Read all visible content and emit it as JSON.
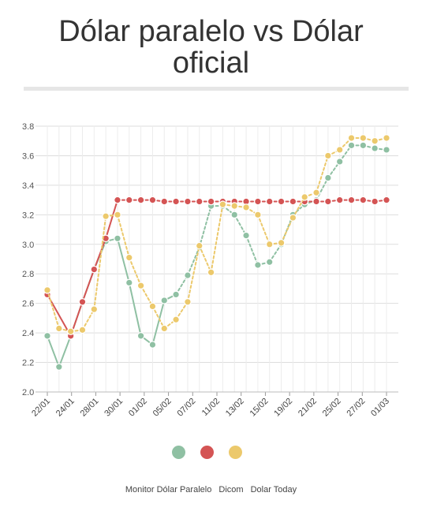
{
  "title_line1": "Dólar paralelo vs Dólar",
  "title_line2": "oficial",
  "chart_data": {
    "type": "line",
    "title": "Dólar paralelo vs Dólar oficial",
    "xlabel": "",
    "ylabel": "",
    "ylim": [
      2.0,
      3.8
    ],
    "y_ticks": [
      "2.0",
      "2.2",
      "2.4",
      "2.6",
      "2.8",
      "3.0",
      "3.2",
      "3.4",
      "3.6",
      "3.8"
    ],
    "x_tick_labels": [
      "22/01",
      "24/01",
      "28/01",
      "30/01",
      "01/02",
      "05/02",
      "07/02",
      "11/02",
      "13/02",
      "15/02",
      "19/02",
      "21/02",
      "25/02",
      "27/02",
      "01/03"
    ],
    "grid": true,
    "legend_position": "bottom",
    "series": [
      {
        "name": "Monitor Dólar Paralelo",
        "color": "#8fc0a3",
        "dashed_segments_from_index": 11,
        "values": [
          2.38,
          2.17,
          2.38,
          2.61,
          2.83,
          3.02,
          3.04,
          2.74,
          2.38,
          2.32,
          2.62,
          2.66,
          2.79,
          2.98,
          3.26,
          3.26,
          3.2,
          3.06,
          2.86,
          2.88,
          3.0,
          3.2,
          3.27,
          3.3,
          3.45,
          3.56,
          3.67,
          3.67,
          3.65,
          3.64
        ]
      },
      {
        "name": "Dicom",
        "color": "#d45454",
        "dashed_segments_from_index": 6,
        "values": [
          2.66,
          null,
          2.38,
          2.61,
          2.83,
          3.04,
          3.3,
          3.3,
          3.3,
          3.3,
          3.29,
          3.29,
          3.29,
          3.29,
          3.29,
          3.29,
          3.29,
          3.29,
          3.29,
          3.29,
          3.29,
          3.29,
          3.29,
          3.29,
          3.29,
          3.3,
          3.3,
          3.3,
          3.29,
          3.3
        ]
      },
      {
        "name": "Dolar Today",
        "color": "#ecc96c",
        "dashed_segments_from_index": 0,
        "values": [
          2.69,
          2.43,
          2.41,
          2.42,
          2.56,
          3.19,
          3.2,
          2.91,
          2.72,
          2.58,
          2.43,
          2.49,
          2.61,
          2.99,
          2.81,
          3.27,
          3.26,
          3.25,
          3.2,
          3.0,
          3.01,
          3.18,
          3.32,
          3.35,
          3.6,
          3.64,
          3.72,
          3.72,
          3.7,
          3.72
        ]
      }
    ]
  },
  "legend": {
    "colors": [
      "#8fc0a3",
      "#d45454",
      "#ecc96c"
    ],
    "labels": [
      "Monitor Dólar Paralelo",
      "Dicom",
      "Dolar Today"
    ]
  }
}
